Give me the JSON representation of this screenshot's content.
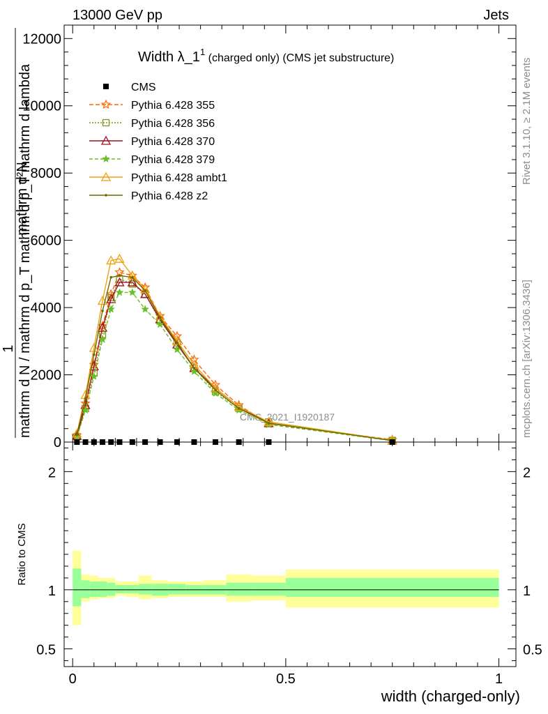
{
  "header": {
    "left": "13000 GeV pp",
    "right": "Jets"
  },
  "side_labels": {
    "rivet": "Rivet 3.1.10, ≥ 2.1M events",
    "mcplots": "mcplots.cern.ch [arXiv:1306.3436]"
  },
  "watermark": "CMS_2021_I1920187",
  "chart_data": [
    {
      "type": "line",
      "title_main": "Width λ_1",
      "title_sup": "1",
      "title_rest": " (charged only) (CMS jet substructure)",
      "ylabel_lines": [
        "1",
        "mathrm d N / mathrm d p",
        "T",
        "mathrm d p",
        "mathrm d lambda",
        "mathrm d",
        "N"
      ],
      "ylabel_numerator": "mathrm d²N",
      "ylabel_denominator": "mathrm d N / mathrm d p_T mathrm d p_T mathrm d lambda",
      "ylabel_prefix": "1",
      "xlim": [
        -0.02,
        1.04
      ],
      "ylim": [
        0,
        12400
      ],
      "yticks": [
        0,
        2000,
        4000,
        6000,
        8000,
        10000,
        12000
      ],
      "legend_position": "top-left",
      "x": [
        0.01,
        0.03,
        0.05,
        0.07,
        0.09,
        0.11,
        0.14,
        0.17,
        0.205,
        0.245,
        0.285,
        0.335,
        0.39,
        0.46,
        0.75
      ],
      "series": [
        {
          "name": "CMS",
          "color": "#000000",
          "marker": "square",
          "values": [
            0,
            0,
            0,
            0,
            0,
            0,
            0,
            0,
            0,
            0,
            0,
            0,
            0,
            0,
            0
          ]
        },
        {
          "name": "Pythia 6.428 355",
          "color": "#ff6600",
          "marker": "star",
          "dash": "6,3",
          "values": [
            200,
            1150,
            2300,
            3450,
            4400,
            5050,
            4950,
            4600,
            3750,
            3150,
            2450,
            1700,
            1100,
            550,
            70
          ]
        },
        {
          "name": "Pythia 6.428 356",
          "color": "#7a9a1a",
          "marker": "square-open",
          "dash": "2,2",
          "values": [
            160,
            1000,
            2050,
            3200,
            4300,
            4850,
            4700,
            4400,
            3600,
            2950,
            2200,
            1500,
            1000,
            600,
            50
          ]
        },
        {
          "name": "Pythia 6.428 370",
          "color": "#a00f1e",
          "marker": "triangle-open",
          "dash": "",
          "values": [
            180,
            1100,
            2250,
            3400,
            4250,
            4750,
            4750,
            4400,
            3650,
            2900,
            2200,
            1600,
            1050,
            560,
            45
          ]
        },
        {
          "name": "Pythia 6.428 379",
          "color": "#6abf26",
          "marker": "star-small",
          "dash": "5,3",
          "values": [
            150,
            950,
            1950,
            3050,
            3950,
            4450,
            4450,
            3950,
            3500,
            2750,
            2100,
            1450,
            950,
            520,
            40
          ]
        },
        {
          "name": "Pythia 6.428 ambt1",
          "color": "#f0a010",
          "marker": "triangle-open",
          "dash": "",
          "values": [
            250,
            1400,
            2800,
            4200,
            5400,
            5450,
            4950,
            4550,
            3750,
            3000,
            2300,
            1600,
            1050,
            600,
            50
          ]
        },
        {
          "name": "Pythia 6.428 z2",
          "color": "#6b6b00",
          "marker": "dot",
          "dash": "",
          "values": [
            220,
            1300,
            2600,
            3900,
            4900,
            4950,
            4900,
            4500,
            3700,
            2950,
            2200,
            1550,
            1000,
            560,
            45
          ]
        }
      ]
    },
    {
      "type": "area",
      "ylabel": "Ratio to CMS",
      "xlabel": "width (charged-only)",
      "xlim": [
        -0.02,
        1.04
      ],
      "ylim": [
        0.35,
        2.25
      ],
      "xticks": [
        0,
        0.5,
        1
      ],
      "xtick_labels": [
        "0",
        "0.5",
        "1"
      ],
      "yticks": [
        0.5,
        1,
        2
      ],
      "ytick_labels": [
        "0.5",
        "1",
        "2"
      ],
      "bins": [
        0,
        0.02,
        0.04,
        0.06,
        0.08,
        0.1,
        0.125,
        0.155,
        0.185,
        0.225,
        0.265,
        0.305,
        0.36,
        0.42,
        0.5,
        1.0
      ],
      "band_stat": [
        [
          0.86,
          1.18
        ],
        [
          0.93,
          1.08
        ],
        [
          0.94,
          1.07
        ],
        [
          0.94,
          1.07
        ],
        [
          0.95,
          1.06
        ],
        [
          0.97,
          1.04
        ],
        [
          0.97,
          1.04
        ],
        [
          0.96,
          1.05
        ],
        [
          0.95,
          1.05
        ],
        [
          0.96,
          1.05
        ],
        [
          0.96,
          1.04
        ],
        [
          0.96,
          1.04
        ],
        [
          0.95,
          1.06
        ],
        [
          0.95,
          1.06
        ],
        [
          0.94,
          1.1
        ]
      ],
      "band_total": [
        [
          0.7,
          1.33
        ],
        [
          0.9,
          1.13
        ],
        [
          0.92,
          1.12
        ],
        [
          0.93,
          1.1
        ],
        [
          0.93,
          1.1
        ],
        [
          0.95,
          1.07
        ],
        [
          0.94,
          1.07
        ],
        [
          0.92,
          1.12
        ],
        [
          0.93,
          1.08
        ],
        [
          0.94,
          1.07
        ],
        [
          0.94,
          1.07
        ],
        [
          0.94,
          1.08
        ],
        [
          0.9,
          1.13
        ],
        [
          0.91,
          1.12
        ],
        [
          0.85,
          1.17
        ]
      ],
      "stat_color": "#99ff99",
      "total_color": "#ffff99"
    }
  ]
}
